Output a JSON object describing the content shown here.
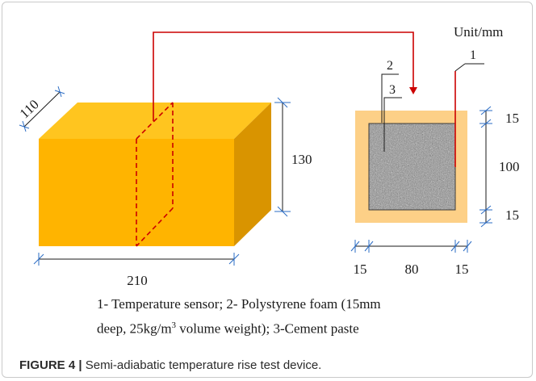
{
  "figure": {
    "unit_label": "Unit/mm",
    "box_dims": {
      "depth": "110",
      "height": "130",
      "length": "210"
    },
    "section_dims": {
      "top_wall": "15",
      "core": "100",
      "bottom_wall": "15",
      "left_wall": "15",
      "width": "80",
      "right_wall": "15"
    },
    "callouts": {
      "sensor": "1",
      "foam": "2",
      "paste": "3"
    },
    "colors": {
      "box_front": "#ffb400",
      "box_top": "#ffc51f",
      "box_side": "#d99400",
      "foam": "#fdd087",
      "sensor_wire": "#cc0000",
      "dimension_ticks": "#2b6cc4"
    }
  },
  "legend": {
    "item1": "1- Temperature sensor;",
    "item2_a": "2- Polystyrene foam (15mm",
    "item2_b": "deep, 25kg/m",
    "item2_sup": "3",
    "item2_c": " volume weight);",
    "item3": "3-Cement paste"
  },
  "caption": {
    "label": "FIGURE 4 |",
    "text": "Semi-adiabatic temperature rise test device."
  }
}
